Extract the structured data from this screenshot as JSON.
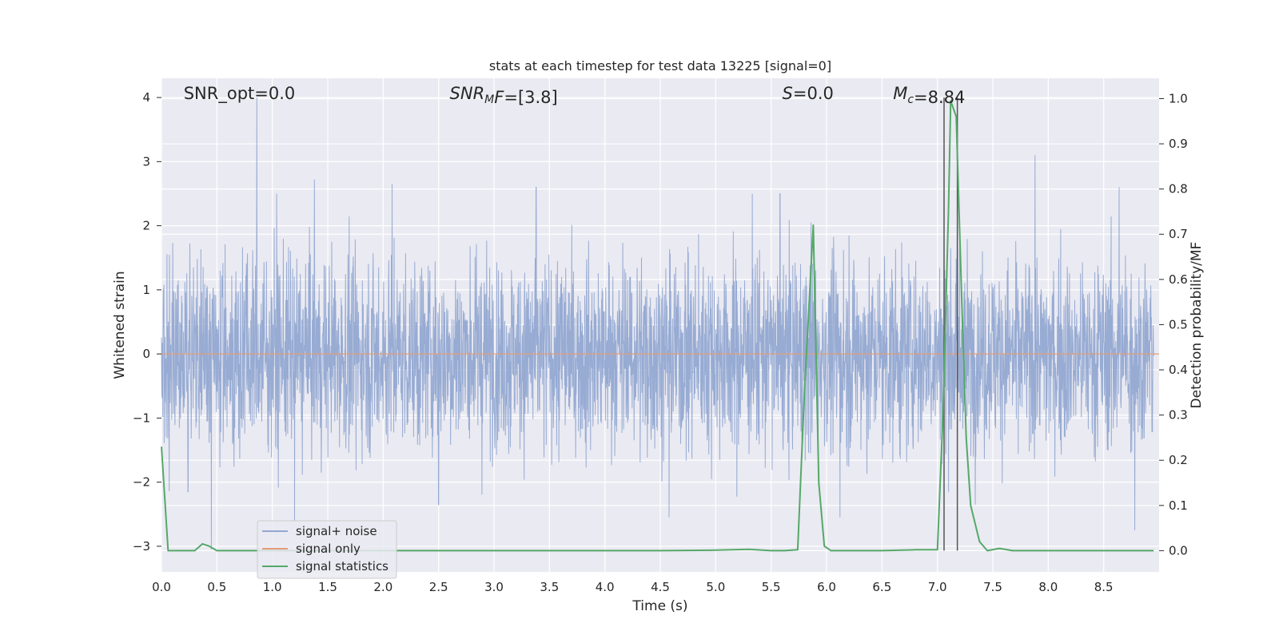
{
  "chart_data": {
    "type": "line",
    "title": "stats at each timestep for test data 13225 [signal=0]",
    "xlabel": "Time (s)",
    "ylabel": "Whitened strain",
    "ylabel_right": "Detection probability/MF",
    "xlim": [
      0.0,
      9.0
    ],
    "ylim": [
      -3.4,
      4.3
    ],
    "ylim_right": [
      -0.047,
      1.045
    ],
    "xticks": [
      "0.0",
      "0.5",
      "1.0",
      "1.5",
      "2.0",
      "2.5",
      "3.0",
      "3.5",
      "4.0",
      "4.5",
      "5.0",
      "5.5",
      "6.0",
      "6.5",
      "7.0",
      "7.5",
      "8.0",
      "8.5"
    ],
    "yticks": [
      "4",
      "3",
      "2",
      "1",
      "0",
      "−1",
      "−2",
      "−3"
    ],
    "yticks_right": [
      "1.0",
      "0.9",
      "0.8",
      "0.7",
      "0.6",
      "0.5",
      "0.4",
      "0.3",
      "0.2",
      "0.1",
      "0.0"
    ],
    "grid": true,
    "annotations": [
      {
        "prefix": "SNR_opt=",
        "italic": "",
        "sub": "",
        "suffix": "",
        "value": "0.0",
        "x": 0.2
      },
      {
        "prefix": "",
        "italic": "SNR",
        "sub": "M",
        "suffix": "F=",
        "value": "[3.8]",
        "x": 2.6
      },
      {
        "prefix": "",
        "italic": "S",
        "sub": "",
        "suffix": "=",
        "value": "0.0",
        "x": 5.6
      },
      {
        "prefix": "",
        "italic": "M",
        "sub": "c",
        "suffix": "=",
        "value": "8.84",
        "x": 6.6
      }
    ],
    "vertical_lines": [
      7.06,
      7.18
    ],
    "series": [
      {
        "name": "signal+ noise",
        "color": "#92a8d1",
        "style": "noise",
        "noise_sigma": 0.75,
        "peaks": [
          {
            "x": 0.86,
            "y": 4.0
          },
          {
            "x": 0.45,
            "y": -3.05
          },
          {
            "x": 1.38,
            "y": 2.72
          },
          {
            "x": 1.2,
            "y": 2.65
          },
          {
            "x": 2.08,
            "y": 2.65
          },
          {
            "x": 3.38,
            "y": 2.6
          },
          {
            "x": 5.33,
            "y": 2.5
          },
          {
            "x": 5.58,
            "y": 2.5
          },
          {
            "x": 7.88,
            "y": 3.1
          },
          {
            "x": 8.64,
            "y": 2.6
          },
          {
            "x": 1.04,
            "y": 2.5
          },
          {
            "x": 0.24,
            "y": -2.15
          },
          {
            "x": 1.2,
            "y": -2.6
          },
          {
            "x": 2.5,
            "y": -2.35
          },
          {
            "x": 4.58,
            "y": -2.55
          },
          {
            "x": 6.12,
            "y": -2.55
          },
          {
            "x": 8.78,
            "y": -2.75
          },
          {
            "x": 5.86,
            "y": 2.05
          },
          {
            "x": 7.18,
            "y": 2.5
          }
        ]
      },
      {
        "name": "signal only",
        "color": "#e39d7a",
        "x": [
          0.0,
          9.0
        ],
        "y": [
          0.0,
          0.0
        ]
      },
      {
        "name": "signal statistics",
        "color": "#55a868",
        "axis": "right",
        "x": [
          0.0,
          0.06,
          0.12,
          0.3,
          0.37,
          0.43,
          0.5,
          1.0,
          2.0,
          3.0,
          4.0,
          4.5,
          5.0,
          5.3,
          5.5,
          5.62,
          5.74,
          5.8,
          5.88,
          5.93,
          5.98,
          6.04,
          6.2,
          6.5,
          6.8,
          7.0,
          7.05,
          7.1,
          7.12,
          7.17,
          7.22,
          7.26,
          7.3,
          7.38,
          7.45,
          7.56,
          7.68,
          8.0,
          8.5,
          8.95
        ],
        "y": [
          0.23,
          0.0,
          0.0,
          0.0,
          0.015,
          0.01,
          0.0,
          0.0,
          0.0,
          0.0,
          0.0,
          0.0,
          0.001,
          0.003,
          0.0,
          0.0,
          0.002,
          0.35,
          0.72,
          0.15,
          0.01,
          0.0,
          0.0,
          0.0,
          0.002,
          0.002,
          0.3,
          0.75,
          0.995,
          0.96,
          0.55,
          0.25,
          0.1,
          0.02,
          0.0,
          0.005,
          0.0,
          0.0,
          0.0,
          0.0
        ]
      }
    ],
    "legend": {
      "position": "lower-left",
      "entries": [
        "signal+ noise",
        "signal only",
        "signal statistics"
      ]
    }
  }
}
